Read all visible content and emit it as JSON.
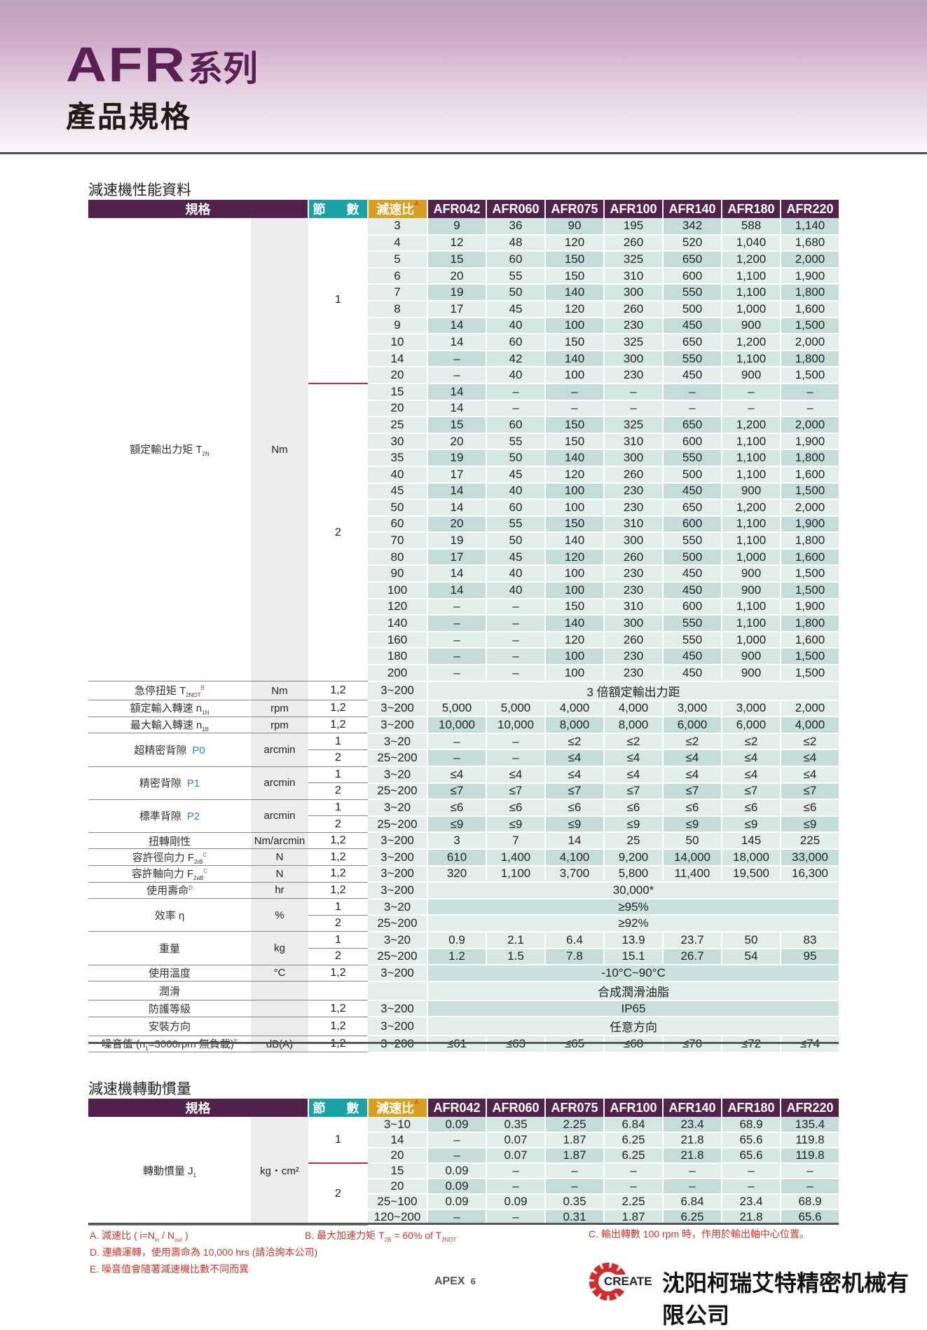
{
  "header": {
    "series_code": "AFR",
    "series_word": "系列",
    "subtitle": "產品規格"
  },
  "colors": {
    "brand_purple": "#52224d",
    "stage_teal": "#1aa3a6",
    "ratio_gold": "#d9a020",
    "note_red": "#c8372d"
  },
  "columns": {
    "spec": "規格",
    "stage": "節　數",
    "ratio": "減速比",
    "ratio_note": "A",
    "models": [
      "AFR042",
      "AFR060",
      "AFR075",
      "AFR100",
      "AFR140",
      "AFR180",
      "AFR220"
    ]
  },
  "performance": {
    "title": "減速機性能資料",
    "torque": {
      "label": "額定輸出力矩 T",
      "sub": "2N",
      "unit": "Nm",
      "stages": [
        {
          "stage": "1",
          "rows": [
            {
              "ratio": "3",
              "values": [
                "9",
                "36",
                "90",
                "195",
                "342",
                "588",
                "1,140"
              ]
            },
            {
              "ratio": "4",
              "values": [
                "12",
                "48",
                "120",
                "260",
                "520",
                "1,040",
                "1,680"
              ]
            },
            {
              "ratio": "5",
              "values": [
                "15",
                "60",
                "150",
                "325",
                "650",
                "1,200",
                "2,000"
              ]
            },
            {
              "ratio": "6",
              "values": [
                "20",
                "55",
                "150",
                "310",
                "600",
                "1,100",
                "1,900"
              ]
            },
            {
              "ratio": "7",
              "values": [
                "19",
                "50",
                "140",
                "300",
                "550",
                "1,100",
                "1,800"
              ]
            },
            {
              "ratio": "8",
              "values": [
                "17",
                "45",
                "120",
                "260",
                "500",
                "1,000",
                "1,600"
              ]
            },
            {
              "ratio": "9",
              "values": [
                "14",
                "40",
                "100",
                "230",
                "450",
                "900",
                "1,500"
              ]
            },
            {
              "ratio": "10",
              "values": [
                "14",
                "60",
                "150",
                "325",
                "650",
                "1,200",
                "2,000"
              ]
            },
            {
              "ratio": "14",
              "values": [
                "–",
                "42",
                "140",
                "300",
                "550",
                "1,100",
                "1,800"
              ]
            },
            {
              "ratio": "20",
              "values": [
                "–",
                "40",
                "100",
                "230",
                "450",
                "900",
                "1,500"
              ]
            }
          ]
        },
        {
          "stage": "2",
          "rows": [
            {
              "ratio": "15",
              "values": [
                "14",
                "–",
                "–",
                "–",
                "–",
                "–",
                "–"
              ]
            },
            {
              "ratio": "20",
              "values": [
                "14",
                "–",
                "–",
                "–",
                "–",
                "–",
                "–"
              ]
            },
            {
              "ratio": "25",
              "values": [
                "15",
                "60",
                "150",
                "325",
                "650",
                "1,200",
                "2,000"
              ]
            },
            {
              "ratio": "30",
              "values": [
                "20",
                "55",
                "150",
                "310",
                "600",
                "1,100",
                "1,900"
              ]
            },
            {
              "ratio": "35",
              "values": [
                "19",
                "50",
                "140",
                "300",
                "550",
                "1,100",
                "1,800"
              ]
            },
            {
              "ratio": "40",
              "values": [
                "17",
                "45",
                "120",
                "260",
                "500",
                "1,100",
                "1,600"
              ]
            },
            {
              "ratio": "45",
              "values": [
                "14",
                "40",
                "100",
                "230",
                "450",
                "900",
                "1,500"
              ]
            },
            {
              "ratio": "50",
              "values": [
                "14",
                "60",
                "100",
                "230",
                "650",
                "1,200",
                "2,000"
              ]
            },
            {
              "ratio": "60",
              "values": [
                "20",
                "55",
                "150",
                "310",
                "600",
                "1,100",
                "1,900"
              ]
            },
            {
              "ratio": "70",
              "values": [
                "19",
                "50",
                "140",
                "300",
                "550",
                "1,100",
                "1,800"
              ]
            },
            {
              "ratio": "80",
              "values": [
                "17",
                "45",
                "120",
                "260",
                "500",
                "1,000",
                "1,600"
              ]
            },
            {
              "ratio": "90",
              "values": [
                "14",
                "40",
                "100",
                "230",
                "450",
                "900",
                "1,500"
              ]
            },
            {
              "ratio": "100",
              "values": [
                "14",
                "40",
                "100",
                "230",
                "450",
                "900",
                "1,500"
              ]
            },
            {
              "ratio": "120",
              "values": [
                "–",
                "–",
                "150",
                "310",
                "600",
                "1,100",
                "1,900"
              ]
            },
            {
              "ratio": "140",
              "values": [
                "–",
                "–",
                "140",
                "300",
                "550",
                "1,100",
                "1,800"
              ]
            },
            {
              "ratio": "160",
              "values": [
                "–",
                "–",
                "120",
                "260",
                "550",
                "1,000",
                "1,600"
              ]
            },
            {
              "ratio": "180",
              "values": [
                "–",
                "–",
                "100",
                "230",
                "450",
                "900",
                "1,500"
              ]
            },
            {
              "ratio": "200",
              "values": [
                "–",
                "–",
                "100",
                "230",
                "450",
                "900",
                "1,500"
              ]
            }
          ]
        }
      ]
    },
    "specs": [
      {
        "label": "急停扭矩 T",
        "sub": "2NOT",
        "sup": "B",
        "unit": "Nm",
        "rows": [
          {
            "stage": "1,2",
            "ratio": "3~200",
            "merged": "3 倍額定輸出力距"
          }
        ]
      },
      {
        "label": "額定輸入轉速 n",
        "sub": "1N",
        "unit": "rpm",
        "rows": [
          {
            "stage": "1,2",
            "ratio": "3~200",
            "values": [
              "5,000",
              "5,000",
              "4,000",
              "4,000",
              "3,000",
              "3,000",
              "2,000"
            ]
          }
        ]
      },
      {
        "label": "最大輸入轉速 n",
        "sub": "1B",
        "unit": "rpm",
        "rows": [
          {
            "stage": "1,2",
            "ratio": "3~200",
            "values": [
              "10,000",
              "10,000",
              "8,000",
              "8,000",
              "6,000",
              "6,000",
              "4,000"
            ]
          }
        ]
      },
      {
        "label": "超精密背隙",
        "grade": "P0",
        "unit": "arcmin",
        "rows": [
          {
            "stage": "1",
            "ratio": "3~20",
            "values": [
              "–",
              "–",
              "≤2",
              "≤2",
              "≤2",
              "≤2",
              "≤2"
            ]
          },
          {
            "stage": "2",
            "ratio": "25~200",
            "values": [
              "–",
              "–",
              "≤4",
              "≤4",
              "≤4",
              "≤4",
              "≤4"
            ]
          }
        ]
      },
      {
        "label": "精密背隙",
        "grade": "P1",
        "unit": "arcmin",
        "rows": [
          {
            "stage": "1",
            "ratio": "3~20",
            "values": [
              "≤4",
              "≤4",
              "≤4",
              "≤4",
              "≤4",
              "≤4",
              "≤4"
            ]
          },
          {
            "stage": "2",
            "ratio": "25~200",
            "values": [
              "≤7",
              "≤7",
              "≤7",
              "≤7",
              "≤7",
              "≤7",
              "≤7"
            ]
          }
        ]
      },
      {
        "label": "標準背隙",
        "grade": "P2",
        "unit": "arcmin",
        "rows": [
          {
            "stage": "1",
            "ratio": "3~20",
            "values": [
              "≤6",
              "≤6",
              "≤6",
              "≤6",
              "≤6",
              "≤6",
              "≤6"
            ]
          },
          {
            "stage": "2",
            "ratio": "25~200",
            "values": [
              "≤9",
              "≤9",
              "≤9",
              "≤9",
              "≤9",
              "≤9",
              "≤9"
            ]
          }
        ]
      },
      {
        "label": "扭轉剛性",
        "unit": "Nm/arcmin",
        "rows": [
          {
            "stage": "1,2",
            "ratio": "3~200",
            "values": [
              "3",
              "7",
              "14",
              "25",
              "50",
              "145",
              "225"
            ]
          }
        ]
      },
      {
        "label": "容許徑向力 F",
        "sub": "2rB",
        "sup": "C",
        "unit": "N",
        "rows": [
          {
            "stage": "1,2",
            "ratio": "3~200",
            "values": [
              "610",
              "1,400",
              "4,100",
              "9,200",
              "14,000",
              "18,000",
              "33,000"
            ]
          }
        ]
      },
      {
        "label": "容許軸向力 F",
        "sub": "2aB",
        "sup": "C",
        "unit": "N",
        "rows": [
          {
            "stage": "1,2",
            "ratio": "3~200",
            "values": [
              "320",
              "1,100",
              "3,700",
              "5,800",
              "11,400",
              "19,500",
              "16,300"
            ]
          }
        ]
      },
      {
        "label": "使用壽命",
        "sup": "D",
        "unit": "hr",
        "rows": [
          {
            "stage": "1,2",
            "ratio": "3~200",
            "merged": "30,000*"
          }
        ]
      },
      {
        "label": "效率 η",
        "unit": "%",
        "rows": [
          {
            "stage": "1",
            "ratio": "3~20",
            "merged": "≥95%"
          },
          {
            "stage": "2",
            "ratio": "25~200",
            "merged": "≥92%"
          }
        ]
      },
      {
        "label": "重量",
        "unit": "kg",
        "rows": [
          {
            "stage": "1",
            "ratio": "3~20",
            "values": [
              "0.9",
              "2.1",
              "6.4",
              "13.9",
              "23.7",
              "50",
              "83"
            ]
          },
          {
            "stage": "2",
            "ratio": "25~200",
            "values": [
              "1.2",
              "1.5",
              "7.8",
              "15.1",
              "26.7",
              "54",
              "95"
            ]
          }
        ]
      },
      {
        "label": "使用溫度",
        "unit": "°C",
        "rows": [
          {
            "stage": "1,2",
            "ratio": "3~200",
            "merged": "-10°C~90°C"
          }
        ]
      },
      {
        "label": "潤滑",
        "unit": "",
        "rows": [
          {
            "stage": "",
            "ratio": "",
            "merged": "合成潤滑油脂"
          }
        ]
      },
      {
        "label": "防護等級",
        "unit": "",
        "rows": [
          {
            "stage": "1,2",
            "ratio": "3~200",
            "merged": "IP65"
          }
        ]
      },
      {
        "label": "安裝方向",
        "unit": "",
        "rows": [
          {
            "stage": "1,2",
            "ratio": "3~200",
            "merged": "任意方向"
          }
        ]
      },
      {
        "label": "噪音值 (n",
        "sub": "1",
        "label_tail": "=3000rpm 無負載)",
        "sup": "E",
        "unit": "dB(A)",
        "rows": [
          {
            "stage": "1,2",
            "ratio": "3~200",
            "values": [
              "≤61",
              "≤63",
              "≤65",
              "≤68",
              "≤70",
              "≤72",
              "≤74"
            ]
          }
        ]
      }
    ]
  },
  "inertia": {
    "title": "減速機轉動慣量",
    "label": "轉動慣量 J",
    "sub": "1",
    "unit": "kg・cm²",
    "stages": [
      {
        "stage": "1",
        "rows": [
          {
            "ratio": "3~10",
            "values": [
              "0.09",
              "0.35",
              "2.25",
              "6.84",
              "23.4",
              "68.9",
              "135.4"
            ]
          },
          {
            "ratio": "14",
            "values": [
              "–",
              "0.07",
              "1.87",
              "6.25",
              "21.8",
              "65.6",
              "119.8"
            ]
          },
          {
            "ratio": "20",
            "values": [
              "–",
              "0.07",
              "1.87",
              "6.25",
              "21.8",
              "65.6",
              "119.8"
            ]
          }
        ]
      },
      {
        "stage": "2",
        "rows": [
          {
            "ratio": "15",
            "values": [
              "0.09",
              "–",
              "–",
              "–",
              "–",
              "–",
              "–"
            ]
          },
          {
            "ratio": "20",
            "values": [
              "0.09",
              "–",
              "–",
              "–",
              "–",
              "–",
              "–"
            ]
          },
          {
            "ratio": "25~100",
            "values": [
              "0.09",
              "0.09",
              "0.35",
              "2.25",
              "6.84",
              "23.4",
              "68.9"
            ]
          },
          {
            "ratio": "120~200",
            "values": [
              "–",
              "–",
              "0.31",
              "1.87",
              "6.25",
              "21.8",
              "65.6"
            ]
          }
        ]
      }
    ]
  },
  "notes": {
    "a": "A. 減速比 ( i=N",
    "a_sub1": "in",
    "a_mid": " / N",
    "a_sub2": "out",
    "a_end": " )",
    "b": "B. 最大加速力矩 T",
    "b_sub1": "2B",
    "b_mid": " = 60% of  T",
    "b_sub2": "2NOT",
    "c": "C. 輸出轉數 100 rpm 時，作用於輸出軸中心位置。",
    "d": "D. 連續運轉，使用壽命為 10,000 hrs (請洽詢本公司)",
    "e": "E. 噪音值會隨著減速機比數不同而異"
  },
  "footer": {
    "brand": "APEX",
    "page": "6",
    "logo_text": "CREATE",
    "company": "沈阳柯瑞艾特精密机械有限公司"
  }
}
